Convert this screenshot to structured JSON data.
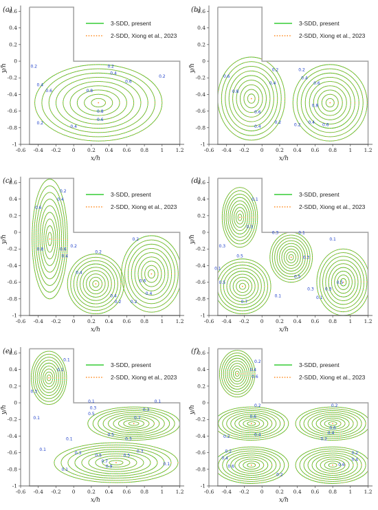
{
  "colors": {
    "present": "#33cc33",
    "reference": "#ff8a1e",
    "boundary": "#a6a6a6",
    "contour_label": "#1a3cc8"
  },
  "chart_data": [
    {
      "panel": "(a)",
      "type": "contour",
      "xlabel": "x/h",
      "ylabel": "y/h",
      "xlim": [
        -0.6,
        1.25
      ],
      "ylim": [
        -1.0,
        0.67
      ],
      "xticks": [
        "-0.6",
        "-0.4",
        "-0.2",
        "0",
        "0.2",
        "0.4",
        "0.6",
        "0.8",
        "1",
        "1.2"
      ],
      "yticks": [
        "0.6",
        "0.4",
        "0.2",
        "0",
        "-0.2",
        "-0.4",
        "-0.6",
        "-0.8",
        "-1"
      ],
      "legend": [
        "3-SDD, present",
        "2-SDD, Xiong et al., 2023"
      ],
      "vortices": [
        {
          "center": [
            0.28,
            -0.5
          ],
          "rx": 0.72,
          "ry": 0.46,
          "sign": 1
        }
      ],
      "contour_labels": [
        {
          "text": "0.2",
          "x": -0.45,
          "y": -0.08
        },
        {
          "text": "0.2",
          "x": 0.42,
          "y": -0.08
        },
        {
          "text": "0.4",
          "x": 0.45,
          "y": -0.16
        },
        {
          "text": "0.6",
          "x": 0.62,
          "y": -0.26
        },
        {
          "text": "0.2",
          "x": 1.0,
          "y": -0.2
        },
        {
          "text": "0.4",
          "x": -0.38,
          "y": -0.3
        },
        {
          "text": "0.6",
          "x": -0.28,
          "y": -0.37
        },
        {
          "text": "0.8",
          "x": 0.18,
          "y": -0.37
        },
        {
          "text": "0.8",
          "x": 0.3,
          "y": -0.62
        },
        {
          "text": "0.6",
          "x": 0.3,
          "y": -0.72
        },
        {
          "text": "0.4",
          "x": 0.0,
          "y": -0.8
        },
        {
          "text": "0.2",
          "x": -0.38,
          "y": -0.76
        }
      ]
    },
    {
      "panel": "(b)",
      "type": "contour",
      "xlabel": "x/h",
      "ylabel": "y/h",
      "xlim": [
        -0.6,
        1.25
      ],
      "ylim": [
        -1.0,
        0.67
      ],
      "xticks": [
        "-0.6",
        "-0.4",
        "-0.2",
        "0",
        "0.2",
        "0.4",
        "0.6",
        "0.8",
        "1",
        "1.2"
      ],
      "yticks": [
        "0.6",
        "0.4",
        "0.2",
        "0",
        "-0.2",
        "-0.4",
        "-0.6",
        "-0.8",
        "-1"
      ],
      "legend": [
        "3-SDD, present",
        "2-SDD, Xiong et al., 2023"
      ],
      "vortices": [
        {
          "center": [
            -0.12,
            -0.45
          ],
          "rx": 0.38,
          "ry": 0.5,
          "sign": -1
        },
        {
          "center": [
            0.77,
            -0.5
          ],
          "rx": 0.42,
          "ry": 0.46,
          "sign": 1
        }
      ],
      "contour_labels": [
        {
          "text": "0.2",
          "x": 0.15,
          "y": -0.12
        },
        {
          "text": "0.4",
          "x": 0.12,
          "y": -0.28
        },
        {
          "text": "0.6",
          "x": -0.4,
          "y": -0.2
        },
        {
          "text": "0.8",
          "x": -0.3,
          "y": -0.38
        },
        {
          "text": "0.6",
          "x": -0.05,
          "y": -0.63
        },
        {
          "text": "0.4",
          "x": -0.05,
          "y": -0.8
        },
        {
          "text": "0.2",
          "x": 0.18,
          "y": -0.75
        },
        {
          "text": "0.2",
          "x": 0.45,
          "y": -0.12
        },
        {
          "text": "0.4",
          "x": 0.48,
          "y": -0.22
        },
        {
          "text": "0.6",
          "x": 0.62,
          "y": -0.28
        },
        {
          "text": "0.8",
          "x": 0.6,
          "y": -0.55
        },
        {
          "text": "0.6",
          "x": 0.72,
          "y": -0.78
        },
        {
          "text": "0.4",
          "x": 0.56,
          "y": -0.75
        },
        {
          "text": "0.2",
          "x": 0.4,
          "y": -0.78
        }
      ]
    },
    {
      "panel": "(c)",
      "type": "contour",
      "xlabel": "x/h",
      "ylabel": "y/h",
      "xlim": [
        -0.6,
        1.25
      ],
      "ylim": [
        -1.0,
        0.67
      ],
      "xticks": [
        "-0.6",
        "-0.4",
        "-0.2",
        "0",
        "0.2",
        "0.4",
        "0.6",
        "0.8",
        "1",
        "1.2"
      ],
      "yticks": [
        "0.6",
        "0.4",
        "0.2",
        "0",
        "-0.2",
        "-0.4",
        "-0.6",
        "-0.8",
        "-1"
      ],
      "legend": [
        "3-SDD, present",
        "2-SDD, Xiong et al., 2023"
      ],
      "vortices": [
        {
          "center": [
            -0.27,
            -0.08
          ],
          "rx": 0.2,
          "ry": 0.72,
          "sign": 1
        },
        {
          "center": [
            0.25,
            -0.62
          ],
          "rx": 0.32,
          "ry": 0.36,
          "sign": -1
        },
        {
          "center": [
            0.88,
            -0.5
          ],
          "rx": 0.34,
          "ry": 0.46,
          "sign": 1
        }
      ],
      "contour_labels": [
        {
          "text": "0.2",
          "x": -0.12,
          "y": 0.48
        },
        {
          "text": "0.4",
          "x": -0.15,
          "y": 0.38
        },
        {
          "text": "0.6",
          "x": -0.4,
          "y": 0.28
        },
        {
          "text": "0.8",
          "x": -0.38,
          "y": -0.22
        },
        {
          "text": "0.6",
          "x": -0.12,
          "y": -0.22
        },
        {
          "text": "0.4",
          "x": -0.1,
          "y": -0.3
        },
        {
          "text": "0.2",
          "x": 0.0,
          "y": -0.18
        },
        {
          "text": "0.2",
          "x": 0.28,
          "y": -0.25
        },
        {
          "text": "0.4",
          "x": 0.06,
          "y": -0.5
        },
        {
          "text": "0.4",
          "x": 0.45,
          "y": -0.78
        },
        {
          "text": "0.2",
          "x": 0.5,
          "y": -0.85
        },
        {
          "text": "0.2",
          "x": 0.7,
          "y": -0.1
        },
        {
          "text": "0.6",
          "x": 0.78,
          "y": -0.6
        },
        {
          "text": "0.4",
          "x": 0.85,
          "y": -0.75
        },
        {
          "text": "0.2",
          "x": 0.68,
          "y": -0.85
        }
      ]
    },
    {
      "panel": "(d)",
      "type": "contour",
      "xlabel": "x/h",
      "ylabel": "y/h",
      "xlim": [
        -0.6,
        1.25
      ],
      "ylim": [
        -1.0,
        0.67
      ],
      "xticks": [
        "-0.6",
        "-0.4",
        "-0.2",
        "0",
        "0.2",
        "0.4",
        "0.6",
        "0.8",
        "1",
        "1.2"
      ],
      "yticks": [
        "0.6",
        "0.4",
        "0.2",
        "0",
        "-0.2",
        "-0.4",
        "-0.6",
        "-0.8",
        "-1"
      ],
      "legend": [
        "3-SDD, present",
        "2-SDD, Xiong et al., 2023"
      ],
      "vortices": [
        {
          "center": [
            -0.25,
            0.18
          ],
          "rx": 0.2,
          "ry": 0.36,
          "sign": 1
        },
        {
          "center": [
            -0.22,
            -0.65
          ],
          "rx": 0.32,
          "ry": 0.33,
          "sign": -1
        },
        {
          "center": [
            0.33,
            -0.3
          ],
          "rx": 0.24,
          "ry": 0.3,
          "sign": -1
        },
        {
          "center": [
            0.92,
            -0.6
          ],
          "rx": 0.3,
          "ry": 0.4,
          "sign": 1
        }
      ],
      "contour_labels": [
        {
          "text": "0.1",
          "x": -0.08,
          "y": 0.38
        },
        {
          "text": "0.3",
          "x": -0.14,
          "y": 0.05
        },
        {
          "text": "0.5",
          "x": -0.25,
          "y": -0.3
        },
        {
          "text": "0.3",
          "x": -0.45,
          "y": -0.18
        },
        {
          "text": "0.1",
          "x": -0.5,
          "y": -0.45
        },
        {
          "text": "0.5",
          "x": -0.45,
          "y": -0.62
        },
        {
          "text": "0.7",
          "x": -0.2,
          "y": -0.85
        },
        {
          "text": "0.1",
          "x": 0.18,
          "y": -0.78
        },
        {
          "text": "0.3",
          "x": 0.15,
          "y": -0.02
        },
        {
          "text": "0.1",
          "x": 0.45,
          "y": -0.02
        },
        {
          "text": "0.3",
          "x": 0.5,
          "y": -0.32
        },
        {
          "text": "0.5",
          "x": 0.4,
          "y": -0.55
        },
        {
          "text": "0.3",
          "x": 0.55,
          "y": -0.7
        },
        {
          "text": "0.1",
          "x": 0.8,
          "y": -0.1
        },
        {
          "text": "0.5",
          "x": 0.88,
          "y": -0.62
        },
        {
          "text": "0.3",
          "x": 0.75,
          "y": -0.7
        },
        {
          "text": "0.1",
          "x": 0.65,
          "y": -0.8
        }
      ]
    },
    {
      "panel": "(e)",
      "type": "contour",
      "xlabel": "x/h",
      "ylabel": "y/h",
      "xlim": [
        -0.6,
        1.25
      ],
      "ylim": [
        -1.0,
        0.67
      ],
      "xticks": [
        "-0.6",
        "-0.4",
        "-0.2",
        "0",
        "0.2",
        "0.4",
        "0.6",
        "0.8",
        "1",
        "1.2"
      ],
      "yticks": [
        "0.6",
        "0.4",
        "0.2",
        "0",
        "-0.2",
        "-0.4",
        "-0.6",
        "-0.8",
        "-1"
      ],
      "legend": [
        "3-SDD, present",
        "2-SDD, Xiong et al., 2023"
      ],
      "vortices": [
        {
          "center": [
            -0.28,
            0.3
          ],
          "rx": 0.2,
          "ry": 0.32,
          "sign": 1
        },
        {
          "center": [
            0.68,
            -0.25
          ],
          "rx": 0.52,
          "ry": 0.2,
          "sign": 1
        },
        {
          "center": [
            0.48,
            -0.72
          ],
          "rx": 0.7,
          "ry": 0.24,
          "sign": -1
        }
      ],
      "contour_labels": [
        {
          "text": "0.1",
          "x": -0.08,
          "y": 0.5
        },
        {
          "text": "0.1",
          "x": -0.15,
          "y": 0.38
        },
        {
          "text": "0.3",
          "x": -0.45,
          "y": 0.12
        },
        {
          "text": "0.1",
          "x": -0.42,
          "y": -0.2
        },
        {
          "text": "0.1",
          "x": 0.2,
          "y": 0.0
        },
        {
          "text": "0.3",
          "x": 0.22,
          "y": -0.08
        },
        {
          "text": "0.5",
          "x": 0.2,
          "y": -0.15
        },
        {
          "text": "0.7",
          "x": 0.72,
          "y": -0.2
        },
        {
          "text": "0.5",
          "x": 0.42,
          "y": -0.4
        },
        {
          "text": "0.3",
          "x": 0.62,
          "y": -0.45
        },
        {
          "text": "0.1",
          "x": -0.05,
          "y": -0.45
        },
        {
          "text": "0.3",
          "x": 0.82,
          "y": -0.1
        },
        {
          "text": "0.1",
          "x": 0.95,
          "y": 0.0
        },
        {
          "text": "0.1",
          "x": -0.35,
          "y": -0.58
        },
        {
          "text": "0.3",
          "x": 0.05,
          "y": -0.62
        },
        {
          "text": "0.5",
          "x": 0.28,
          "y": -0.65
        },
        {
          "text": "0.7",
          "x": 0.35,
          "y": -0.72
        },
        {
          "text": "0.9",
          "x": 0.4,
          "y": -0.78
        },
        {
          "text": "0.5",
          "x": 0.6,
          "y": -0.65
        },
        {
          "text": "0.3",
          "x": 0.75,
          "y": -0.6
        },
        {
          "text": "0.1",
          "x": -0.1,
          "y": -0.82
        },
        {
          "text": "0.1",
          "x": 1.05,
          "y": -0.75
        }
      ]
    },
    {
      "panel": "(f)",
      "type": "contour",
      "xlabel": "x/h",
      "ylabel": "y/h",
      "xlim": [
        -0.6,
        1.25
      ],
      "ylim": [
        -1.0,
        0.67
      ],
      "xticks": [
        "-0.6",
        "-0.4",
        "-0.2",
        "0",
        "0.2",
        "0.4",
        "0.6",
        "0.8",
        "1",
        "1.2"
      ],
      "yticks": [
        "0.6",
        "0.4",
        "0.2",
        "0",
        "-0.2",
        "-0.4",
        "-0.6",
        "-0.8",
        "-1"
      ],
      "legend": [
        "3-SDD, present",
        "2-SDD, Xiong et al., 2023"
      ],
      "vortices": [
        {
          "center": [
            -0.28,
            0.35
          ],
          "rx": 0.2,
          "ry": 0.28,
          "sign": 1
        },
        {
          "center": [
            -0.12,
            -0.25
          ],
          "rx": 0.42,
          "ry": 0.2,
          "sign": -1
        },
        {
          "center": [
            0.8,
            -0.25
          ],
          "rx": 0.42,
          "ry": 0.2,
          "sign": 1
        },
        {
          "center": [
            -0.12,
            -0.75
          ],
          "rx": 0.42,
          "ry": 0.22,
          "sign": 1
        },
        {
          "center": [
            0.8,
            -0.75
          ],
          "rx": 0.42,
          "ry": 0.22,
          "sign": -1
        }
      ],
      "contour_labels": [
        {
          "text": "0.2",
          "x": -0.05,
          "y": 0.48
        },
        {
          "text": "0.4",
          "x": -0.1,
          "y": 0.38
        },
        {
          "text": "0.6",
          "x": -0.08,
          "y": 0.3
        },
        {
          "text": "0.2",
          "x": -0.05,
          "y": -0.05
        },
        {
          "text": "0.6",
          "x": -0.1,
          "y": -0.18
        },
        {
          "text": "0.4",
          "x": -0.05,
          "y": -0.4
        },
        {
          "text": "0.2",
          "x": -0.4,
          "y": -0.42
        },
        {
          "text": "0.2",
          "x": 0.82,
          "y": -0.05
        },
        {
          "text": "0.6",
          "x": 0.8,
          "y": -0.32
        },
        {
          "text": "0.4",
          "x": 0.78,
          "y": -0.38
        },
        {
          "text": "0.2",
          "x": 0.7,
          "y": -0.45
        },
        {
          "text": "0.2",
          "x": -0.38,
          "y": -0.6
        },
        {
          "text": "0.4",
          "x": -0.42,
          "y": -0.68
        },
        {
          "text": "0.6",
          "x": -0.35,
          "y": -0.78
        },
        {
          "text": "0.2",
          "x": 1.05,
          "y": -0.62
        },
        {
          "text": "0.4",
          "x": 1.05,
          "y": -0.7
        },
        {
          "text": "0.6",
          "x": 0.9,
          "y": -0.76
        },
        {
          "text": "0.2",
          "x": 0.2,
          "y": -0.88
        }
      ]
    }
  ]
}
